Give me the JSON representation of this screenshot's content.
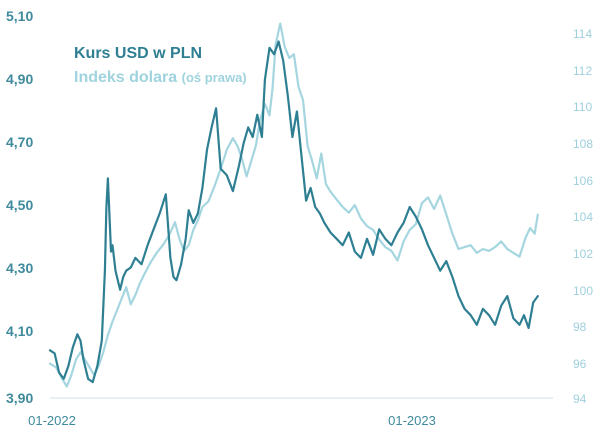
{
  "chart_data": {
    "type": "line",
    "legend": [
      {
        "name": "Kurs USD w PLN",
        "color": "#2f7f93"
      },
      {
        "name": "Indeks dolara",
        "suffix": "(oś prawa)",
        "color": "#a5d6e0"
      }
    ],
    "x_ticks": [
      "01-2022",
      "01-2023"
    ],
    "x_range_months": [
      0,
      16.5
    ],
    "left_axis": {
      "ticks": [
        "5,10",
        "4,90",
        "4,70",
        "4,50",
        "4,30",
        "4,10",
        "3,90"
      ],
      "ylim": [
        3.9,
        5.1
      ]
    },
    "right_axis": {
      "ticks": [
        "114",
        "112",
        "110",
        "108",
        "106",
        "104",
        "102",
        "100",
        "98",
        "96",
        "94"
      ],
      "ylim": [
        94,
        114
      ]
    },
    "series": [
      {
        "name": "Kurs USD w PLN",
        "axis": "left",
        "color": "#2f7f93",
        "x": [
          0,
          0.15,
          0.3,
          0.45,
          0.6,
          0.75,
          0.9,
          1.0,
          1.1,
          1.25,
          1.4,
          1.55,
          1.7,
          1.8,
          1.85,
          1.9,
          2.0,
          2.05,
          2.15,
          2.3,
          2.4,
          2.5,
          2.65,
          2.8,
          3.0,
          3.2,
          3.4,
          3.6,
          3.8,
          3.95,
          4.05,
          4.15,
          4.3,
          4.45,
          4.55,
          4.7,
          4.85,
          5.0,
          5.15,
          5.3,
          5.45,
          5.6,
          5.8,
          6.0,
          6.2,
          6.35,
          6.5,
          6.65,
          6.8,
          6.95,
          7.05,
          7.2,
          7.35,
          7.5,
          7.65,
          7.8,
          7.95,
          8.1,
          8.25,
          8.4,
          8.55,
          8.7,
          8.85,
          9.0,
          9.2,
          9.4,
          9.6,
          9.8,
          10.0,
          10.2,
          10.4,
          10.6,
          10.8,
          11.0,
          11.2,
          11.4,
          11.6,
          11.8,
          12.0,
          12.2,
          12.4,
          12.6,
          12.8,
          13.0,
          13.2,
          13.4,
          13.6,
          13.8,
          14.0,
          14.2,
          14.4,
          14.6,
          14.8,
          15.0,
          15.2,
          15.4,
          15.55,
          15.7,
          15.85,
          16.0
        ],
        "values": [
          4.05,
          4.04,
          3.98,
          3.96,
          4.0,
          4.06,
          4.1,
          4.08,
          4.02,
          3.96,
          3.95,
          4.0,
          4.08,
          4.3,
          4.5,
          4.59,
          4.36,
          4.38,
          4.3,
          4.24,
          4.28,
          4.3,
          4.31,
          4.34,
          4.32,
          4.38,
          4.43,
          4.48,
          4.54,
          4.34,
          4.28,
          4.27,
          4.32,
          4.4,
          4.49,
          4.45,
          4.48,
          4.56,
          4.68,
          4.75,
          4.81,
          4.62,
          4.6,
          4.55,
          4.63,
          4.7,
          4.75,
          4.72,
          4.79,
          4.72,
          4.9,
          5.0,
          4.98,
          5.02,
          4.96,
          4.85,
          4.72,
          4.8,
          4.66,
          4.52,
          4.56,
          4.5,
          4.48,
          4.45,
          4.42,
          4.4,
          4.38,
          4.42,
          4.36,
          4.34,
          4.4,
          4.35,
          4.43,
          4.4,
          4.38,
          4.42,
          4.45,
          4.5,
          4.47,
          4.43,
          4.38,
          4.34,
          4.3,
          4.33,
          4.28,
          4.22,
          4.18,
          4.16,
          4.13,
          4.18,
          4.16,
          4.13,
          4.19,
          4.22,
          4.15,
          4.13,
          4.16,
          4.12,
          4.2,
          4.22
        ]
      },
      {
        "name": "Indeks dolara",
        "axis": "right",
        "color": "#a5d6e0",
        "x": [
          0,
          0.2,
          0.4,
          0.55,
          0.7,
          0.85,
          1.0,
          1.15,
          1.3,
          1.45,
          1.6,
          1.75,
          1.9,
          2.05,
          2.2,
          2.35,
          2.5,
          2.65,
          2.8,
          2.95,
          3.1,
          3.3,
          3.5,
          3.7,
          3.9,
          4.1,
          4.25,
          4.4,
          4.55,
          4.7,
          4.85,
          5.0,
          5.2,
          5.4,
          5.6,
          5.8,
          6.0,
          6.15,
          6.3,
          6.45,
          6.6,
          6.75,
          6.9,
          7.05,
          7.2,
          7.3,
          7.4,
          7.55,
          7.7,
          7.85,
          8.0,
          8.15,
          8.3,
          8.45,
          8.6,
          8.75,
          8.9,
          9.05,
          9.2,
          9.4,
          9.6,
          9.8,
          10.0,
          10.2,
          10.4,
          10.6,
          10.8,
          11.0,
          11.2,
          11.4,
          11.6,
          11.8,
          12.0,
          12.2,
          12.4,
          12.6,
          12.8,
          13.0,
          13.2,
          13.4,
          13.6,
          13.8,
          14.0,
          14.2,
          14.4,
          14.6,
          14.8,
          15.0,
          15.2,
          15.4,
          15.6,
          15.75,
          15.9,
          16.0
        ],
        "values": [
          95.8,
          95.6,
          95.0,
          94.6,
          95.2,
          96.0,
          96.4,
          96.0,
          95.6,
          95.2,
          95.7,
          96.4,
          97.3,
          98.0,
          98.6,
          99.2,
          99.8,
          98.9,
          99.4,
          100.0,
          100.5,
          101.1,
          101.6,
          102.0,
          102.5,
          103.2,
          102.3,
          101.7,
          102.0,
          102.8,
          103.3,
          104.0,
          104.3,
          105.1,
          106.0,
          107.0,
          107.6,
          107.2,
          106.5,
          105.6,
          106.4,
          107.2,
          108.6,
          109.4,
          108.8,
          110.2,
          112.5,
          113.6,
          112.4,
          111.8,
          112.0,
          110.3,
          109.6,
          107.2,
          106.4,
          105.5,
          106.8,
          105.2,
          104.8,
          104.4,
          104.0,
          103.7,
          104.1,
          103.4,
          103.0,
          102.8,
          102.3,
          101.9,
          101.7,
          101.2,
          102.2,
          102.8,
          103.1,
          104.2,
          104.5,
          103.9,
          104.6,
          103.6,
          102.6,
          101.8,
          101.9,
          102.0,
          101.6,
          101.8,
          101.7,
          101.9,
          102.2,
          101.8,
          101.6,
          101.4,
          102.4,
          102.9,
          102.6,
          103.6
        ]
      }
    ]
  }
}
